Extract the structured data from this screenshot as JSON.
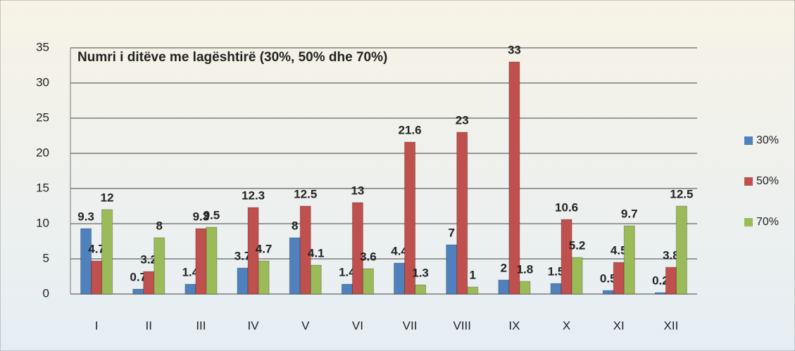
{
  "chart_data": {
    "type": "bar",
    "title": "Numri i ditëve me lagështirë (30%, 50% dhe 70%)",
    "categories": [
      "I",
      "II",
      "III",
      "IV",
      "V",
      "VI",
      "VII",
      "VIII",
      "IX",
      "X",
      "XI",
      "XII"
    ],
    "series": [
      {
        "name": "30%",
        "color": "#4f81bd",
        "values": [
          9.3,
          0.7,
          1.4,
          3.7,
          8,
          1.4,
          4.4,
          7,
          2,
          1.5,
          0.5,
          0.2
        ]
      },
      {
        "name": "50%",
        "color": "#c0504d",
        "values": [
          4.7,
          3.2,
          9.3,
          12.3,
          12.5,
          13,
          21.6,
          23,
          33,
          10.6,
          4.5,
          3.8
        ]
      },
      {
        "name": "70%",
        "color": "#9bbb59",
        "values": [
          12,
          8,
          9.5,
          4.7,
          4.1,
          3.6,
          1.3,
          1,
          1.8,
          5.2,
          9.7,
          12.5
        ]
      }
    ],
    "ylim": [
      0,
      35
    ],
    "yticks": [
      0,
      5,
      10,
      15,
      20,
      25,
      30,
      35
    ],
    "grid": true,
    "legend": "right"
  }
}
